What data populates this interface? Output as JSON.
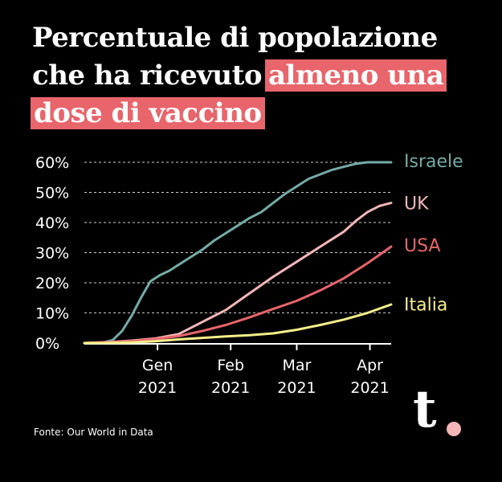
{
  "title": {
    "line1": "Percentuale di popolazione",
    "line2_plain": "che ha ricevuto",
    "line2_highlight": "almeno una",
    "line3_highlight": "dose di vaccino"
  },
  "source": "Fonte: Our World in Data",
  "logo": {
    "letter": "t"
  },
  "colors": {
    "background": "#000000",
    "highlight": "#e8656b",
    "israele": "#74aba7",
    "uk": "#f4b6b8",
    "usa": "#e8656b",
    "italia": "#f5ee8a"
  },
  "chart_data": {
    "type": "line",
    "title": "Percentuale di popolazione che ha ricevuto almeno una dose di vaccino",
    "xlabel": "",
    "ylabel": "",
    "ylim": [
      0,
      60
    ],
    "grid": true,
    "x_unit": "days since 2020-12-01",
    "xlim": [
      0,
      130
    ],
    "yticks": [
      {
        "value": 0,
        "label": "0%"
      },
      {
        "value": 10,
        "label": "10%"
      },
      {
        "value": 20,
        "label": "20%"
      },
      {
        "value": 30,
        "label": "30%"
      },
      {
        "value": 40,
        "label": "40%"
      },
      {
        "value": 50,
        "label": "50%"
      },
      {
        "value": 60,
        "label": "60%"
      }
    ],
    "xticks": [
      {
        "value": 31,
        "month": "Gen",
        "year": "2021"
      },
      {
        "value": 62,
        "month": "Feb",
        "year": "2021"
      },
      {
        "value": 90,
        "month": "Mar",
        "year": "2021"
      },
      {
        "value": 121,
        "month": "Apr",
        "year": "2021"
      }
    ],
    "series": [
      {
        "name": "Israele",
        "color": "#74aba7",
        "x": [
          0,
          8,
          12,
          16,
          20,
          24,
          28,
          32,
          36,
          40,
          45,
          50,
          55,
          60,
          65,
          70,
          75,
          80,
          85,
          90,
          95,
          100,
          105,
          110,
          115,
          120,
          125,
          130
        ],
        "y": [
          0,
          0.2,
          1,
          4,
          9,
          15,
          20.5,
          22.5,
          24,
          26,
          28.5,
          31,
          34,
          36.5,
          39,
          41.5,
          43.5,
          46.5,
          49.5,
          52,
          54.5,
          56,
          57.5,
          58.5,
          59.5,
          60,
          60,
          60
        ]
      },
      {
        "name": "UK",
        "color": "#f4b6b8",
        "x": [
          0,
          10,
          20,
          30,
          40,
          50,
          60,
          70,
          80,
          90,
          100,
          110,
          115,
          120,
          125,
          130
        ],
        "y": [
          0,
          0.3,
          0.8,
          1.5,
          3,
          7,
          11,
          16.5,
          22,
          27,
          32,
          37,
          40.5,
          43.5,
          45.5,
          46.5
        ]
      },
      {
        "name": "USA",
        "color": "#e8656b",
        "x": [
          0,
          10,
          20,
          30,
          40,
          50,
          60,
          70,
          80,
          90,
          100,
          110,
          120,
          130
        ],
        "y": [
          0,
          0.3,
          0.6,
          1.3,
          2.3,
          4,
          6,
          8.5,
          11.3,
          14,
          17.5,
          21.5,
          26.5,
          32
        ]
      },
      {
        "name": "Italia",
        "color": "#f5ee8a",
        "x": [
          0,
          10,
          20,
          30,
          40,
          50,
          60,
          70,
          80,
          90,
          100,
          110,
          120,
          130
        ],
        "y": [
          0,
          0.05,
          0.2,
          0.6,
          1.2,
          1.7,
          2.2,
          2.6,
          3.2,
          4.4,
          6,
          7.8,
          10,
          12.8
        ]
      }
    ],
    "legend": [
      {
        "label": "Israele",
        "color": "#74aba7",
        "y": 60.5
      },
      {
        "label": "UK",
        "color": "#f4b6b8",
        "y": 46.5
      },
      {
        "label": "USA",
        "color": "#e8656b",
        "y": 32.5
      },
      {
        "label": "Italia",
        "color": "#f5ee8a",
        "y": 13
      }
    ],
    "legend_position": "right, at line ends"
  }
}
